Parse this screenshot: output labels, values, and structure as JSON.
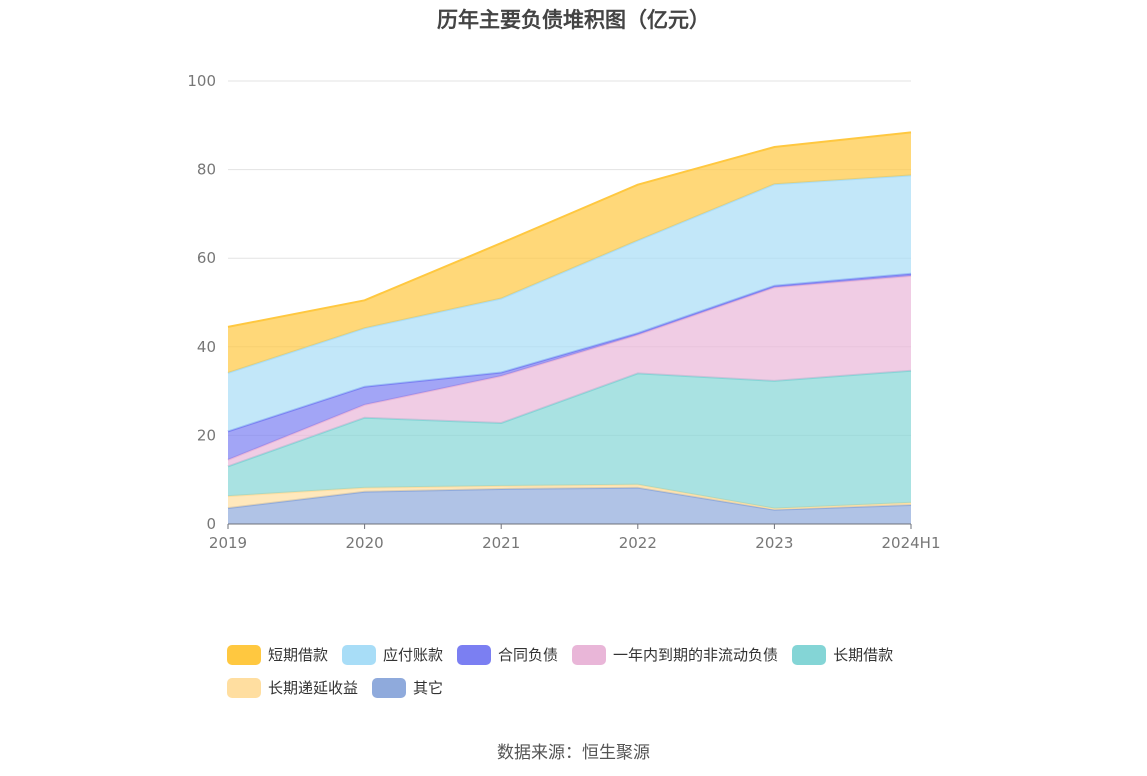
{
  "chart_data": {
    "type": "area",
    "stacked": true,
    "title": "历年主要负债堆积图（亿元）",
    "categories": [
      "2019",
      "2020",
      "2021",
      "2022",
      "2023",
      "2024H1"
    ],
    "ylim": [
      0,
      100
    ],
    "yticks": [
      "0",
      "20",
      "40",
      "60",
      "80",
      "100"
    ],
    "grid": true,
    "legend_position": "bottom",
    "series": [
      {
        "name": "其它",
        "color": "#8faadc",
        "values": [
          3.6,
          7.3,
          7.9,
          8.2,
          3.2,
          4.3
        ]
      },
      {
        "name": "长期递延收益",
        "color": "#ffdea0",
        "values": [
          2.7,
          0.9,
          0.7,
          0.7,
          0.3,
          0.5
        ]
      },
      {
        "name": "长期借款",
        "color": "#84d5d6",
        "values": [
          6.7,
          15.8,
          14.2,
          25.1,
          28.8,
          29.8
        ]
      },
      {
        "name": "一年内到期的非流动负债",
        "color": "#e9b6d8",
        "values": [
          1.5,
          2.9,
          10.6,
          8.7,
          21.1,
          21.4
        ]
      },
      {
        "name": "合同负债",
        "color": "#7b7ff2",
        "values": [
          6.4,
          4.1,
          0.8,
          0.4,
          0.4,
          0.5
        ]
      },
      {
        "name": "应付账款",
        "color": "#a8ddf7",
        "values": [
          13.2,
          13.2,
          16.7,
          20.9,
          22.9,
          22.2
        ]
      },
      {
        "name": "短期借款",
        "color": "#ffc840",
        "values": [
          10.4,
          6.3,
          12.5,
          12.6,
          8.4,
          9.7
        ]
      }
    ],
    "legend_order": [
      "短期借款",
      "应付账款",
      "合同负债",
      "一年内到期的非流动负债",
      "长期借款",
      "长期递延收益",
      "其它"
    ]
  },
  "source": "数据来源：恒生聚源"
}
